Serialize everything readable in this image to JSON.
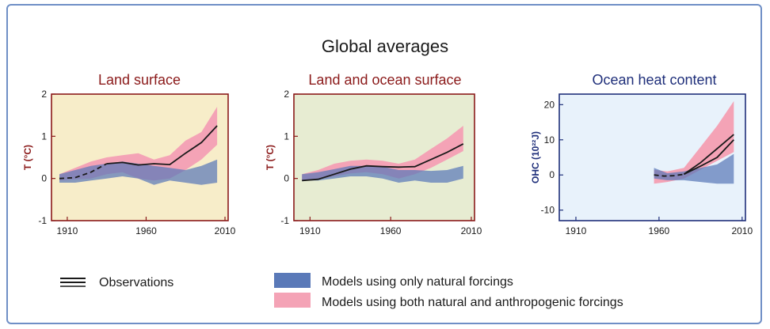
{
  "figure_title": "Global averages",
  "colors": {
    "natural": "#5a79b8",
    "anthro": "#f4a3b6",
    "observations": "#1a1a1a",
    "land_bg": "#f7edc9",
    "both_bg": "#e7ecd2",
    "ocean_bg": "#e8f2fb",
    "red_title": "#8b1a1a",
    "blue_title": "#1f2f7a"
  },
  "legend": {
    "observations": "Observations",
    "natural": "Models using only natural forcings",
    "anthro": "Models using both natural and anthropogenic forcings"
  },
  "chart_data": [
    {
      "type": "line",
      "title": "Land surface",
      "ylabel": "T (°C)",
      "xlim": [
        1900,
        2012
      ],
      "ylim": [
        -1,
        2
      ],
      "xticks": [
        1910,
        1960,
        2010
      ],
      "yticks": [
        -1,
        0,
        1,
        2
      ],
      "observations": {
        "dashed_x": [
          1905,
          1915,
          1925,
          1935
        ],
        "dashed_y": [
          0.0,
          0.02,
          0.15,
          0.35
        ],
        "solid_x": [
          1935,
          1945,
          1955,
          1965,
          1975,
          1985,
          1995,
          2005
        ],
        "solid_y": [
          0.35,
          0.38,
          0.32,
          0.35,
          0.33,
          0.6,
          0.85,
          1.25
        ]
      },
      "band_anthro": {
        "x": [
          1905,
          1915,
          1925,
          1935,
          1945,
          1955,
          1965,
          1975,
          1985,
          1995,
          2005
        ],
        "lower": [
          -0.05,
          -0.02,
          0.0,
          0.1,
          0.15,
          0.0,
          -0.05,
          0.0,
          0.2,
          0.45,
          0.8
        ],
        "upper": [
          0.1,
          0.25,
          0.4,
          0.5,
          0.55,
          0.6,
          0.45,
          0.55,
          0.9,
          1.1,
          1.7
        ]
      },
      "band_natural": {
        "x": [
          1905,
          1915,
          1925,
          1935,
          1945,
          1955,
          1965,
          1975,
          1985,
          1995,
          2005
        ],
        "lower": [
          -0.1,
          -0.1,
          -0.05,
          0.0,
          0.05,
          0.0,
          -0.15,
          -0.05,
          -0.1,
          -0.15,
          -0.1
        ],
        "upper": [
          0.1,
          0.2,
          0.3,
          0.35,
          0.4,
          0.35,
          0.3,
          0.25,
          0.2,
          0.3,
          0.45
        ]
      }
    },
    {
      "type": "line",
      "title": "Land and ocean surface",
      "ylabel": "T (°C)",
      "xlim": [
        1900,
        2012
      ],
      "ylim": [
        -1,
        2
      ],
      "xticks": [
        1910,
        1960,
        2010
      ],
      "yticks": [
        -1,
        0,
        1,
        2
      ],
      "observations": {
        "dashed_x": [],
        "dashed_y": [],
        "solid_x": [
          1905,
          1915,
          1925,
          1935,
          1945,
          1955,
          1965,
          1975,
          1985,
          1995,
          2005
        ],
        "solid_y": [
          -0.05,
          -0.02,
          0.1,
          0.22,
          0.3,
          0.28,
          0.27,
          0.28,
          0.45,
          0.62,
          0.82
        ]
      },
      "band_anthro": {
        "x": [
          1905,
          1915,
          1925,
          1935,
          1945,
          1955,
          1965,
          1975,
          1985,
          1995,
          2005
        ],
        "lower": [
          -0.05,
          -0.02,
          0.05,
          0.12,
          0.15,
          0.1,
          0.0,
          0.1,
          0.25,
          0.45,
          0.65
        ],
        "upper": [
          0.1,
          0.2,
          0.35,
          0.42,
          0.45,
          0.42,
          0.35,
          0.45,
          0.7,
          0.95,
          1.25
        ]
      },
      "band_natural": {
        "x": [
          1905,
          1915,
          1925,
          1935,
          1945,
          1955,
          1965,
          1975,
          1985,
          1995,
          2005
        ],
        "lower": [
          -0.05,
          -0.05,
          0.0,
          0.05,
          0.05,
          0.0,
          -0.1,
          -0.05,
          -0.1,
          -0.1,
          0.0
        ],
        "upper": [
          0.1,
          0.15,
          0.22,
          0.3,
          0.3,
          0.28,
          0.2,
          0.2,
          0.18,
          0.2,
          0.3
        ]
      }
    },
    {
      "type": "line",
      "title": "Ocean heat content",
      "ylabel": "OHC (10²²J)",
      "xlim": [
        1900,
        2012
      ],
      "ylim": [
        -13,
        23
      ],
      "xticks": [
        1910,
        1960,
        2010
      ],
      "yticks": [
        -10,
        0,
        10,
        20
      ],
      "observations": {
        "dashed_x": [
          1957,
          1963,
          1969,
          1975
        ],
        "dashed_y": [
          0.0,
          -0.3,
          -0.2,
          0.2
        ],
        "solid_x": [
          1975,
          1985,
          1995,
          2005
        ],
        "solid_y": [
          0.2,
          3.5,
          7.5,
          11.5
        ],
        "extra_x": [
          1975,
          1985,
          1995,
          2005
        ],
        "extra_y": [
          0.2,
          2.5,
          5.0,
          10.0
        ]
      },
      "band_anthro": {
        "x": [
          1957,
          1965,
          1975,
          1985,
          1995,
          2005
        ],
        "lower": [
          -2.5,
          -2.0,
          -1.0,
          1.5,
          4.0,
          6.5
        ],
        "upper": [
          1.5,
          1.0,
          2.0,
          8.0,
          14.0,
          21.0
        ]
      },
      "band_natural": {
        "x": [
          1957,
          1965,
          1975,
          1985,
          1995,
          2005
        ],
        "lower": [
          -1.0,
          -1.5,
          -1.5,
          -2.0,
          -2.5,
          -2.5
        ],
        "upper": [
          2.0,
          0.5,
          1.0,
          2.0,
          3.0,
          6.0
        ]
      }
    }
  ]
}
